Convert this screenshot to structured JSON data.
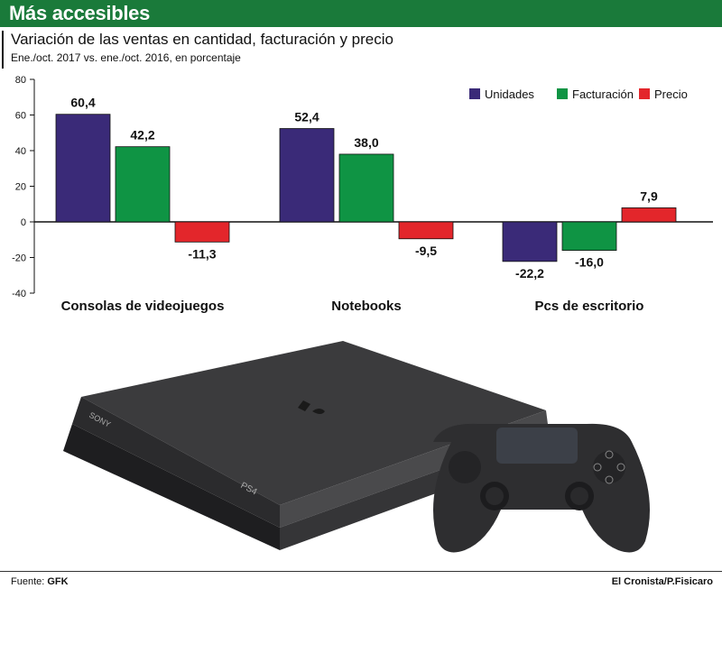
{
  "header": {
    "title": "Más accesibles"
  },
  "subtitle": "Variación de las ventas en cantidad, facturación y precio",
  "note": "Ene./oct. 2017 vs. ene./oct. 2016, en porcentaje",
  "chart_data": {
    "type": "bar",
    "categories": [
      "Consolas de videojuegos",
      "Notebooks",
      "Pcs de escritorio"
    ],
    "series": [
      {
        "name": "Unidades",
        "color": "#3a2a78",
        "values": [
          60.4,
          52.4,
          -22.2
        ],
        "labels": [
          "60,4",
          "52,4",
          "-22,2"
        ]
      },
      {
        "name": "Facturación",
        "color": "#0f9444",
        "values": [
          42.2,
          38.0,
          -16.0
        ],
        "labels": [
          "42,2",
          "38,0",
          "-16,0"
        ]
      },
      {
        "name": "Precio",
        "color": "#e3262b",
        "values": [
          -11.3,
          -9.5,
          7.9
        ],
        "labels": [
          "-11,3",
          "-9,5",
          "7,9"
        ]
      }
    ],
    "ylim": [
      -40,
      80
    ],
    "yticks": [
      80,
      60,
      40,
      20,
      0,
      -20,
      -40
    ],
    "grid": false,
    "legend": "top-right"
  },
  "footer": {
    "source_label": "Fuente:",
    "source_value": "GFK",
    "credit": "El Cronista/P.Fisicaro"
  },
  "illustration": {
    "console_brand": "SONY",
    "console_model": "PS4"
  }
}
